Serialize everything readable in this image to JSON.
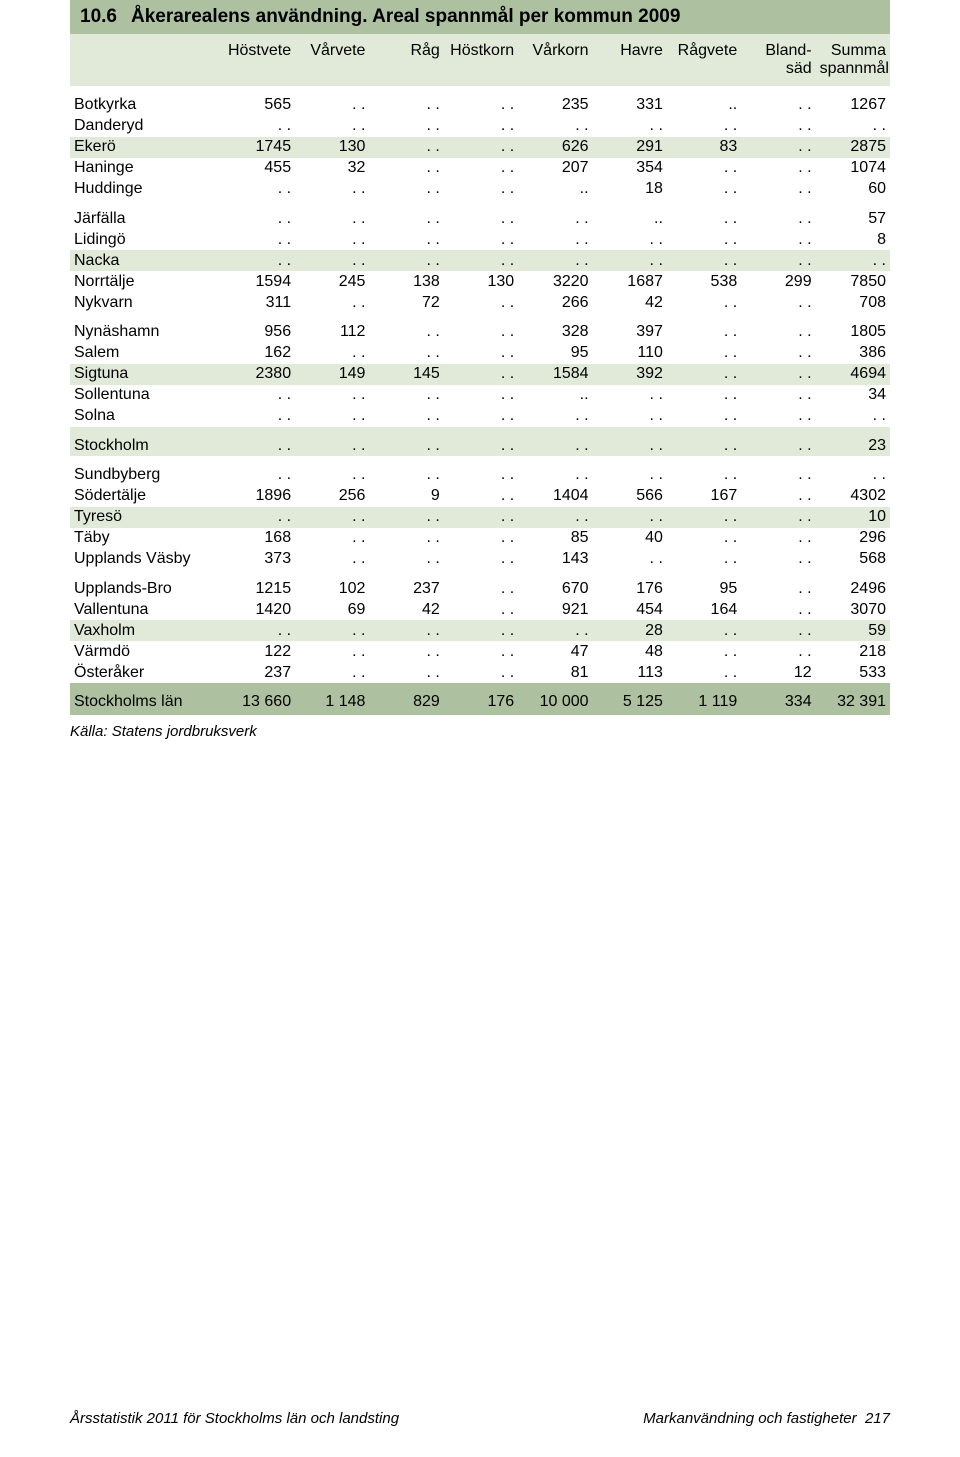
{
  "title_num": "10.6",
  "title_text": "Åkerarealens användning. Areal spannmål per kommun 2009",
  "columns": [
    "Höstvete",
    "Vårvete",
    "Råg",
    "Höstkorn",
    "Vårkorn",
    "Havre",
    "Rågvete",
    "Bland-\nsäd",
    "Summa\nspannmål"
  ],
  "groups": [
    {
      "hl": [
        2
      ],
      "rows": [
        {
          "l": "Botkyrka",
          "v": [
            "565",
            ". .",
            ". .",
            ". .",
            "235",
            "331",
            "..",
            ". .",
            "1267"
          ]
        },
        {
          "l": "Danderyd",
          "v": [
            ". .",
            ". .",
            ". .",
            ". .",
            ". .",
            ". .",
            ". .",
            ". .",
            ". ."
          ]
        },
        {
          "l": "Ekerö",
          "v": [
            "1745",
            "130",
            ". .",
            ". .",
            "626",
            "291",
            "83",
            ". .",
            "2875"
          ]
        },
        {
          "l": "Haninge",
          "v": [
            "455",
            "32",
            ". .",
            ". .",
            "207",
            "354",
            ". .",
            ". .",
            "1074"
          ]
        },
        {
          "l": "Huddinge",
          "v": [
            ". .",
            ". .",
            ". .",
            ". .",
            "..",
            "18",
            ". .",
            ". .",
            "60"
          ]
        }
      ]
    },
    {
      "hl": [
        2
      ],
      "rows": [
        {
          "l": "Järfälla",
          "v": [
            ". .",
            ". .",
            ". .",
            ". .",
            ". .",
            "..",
            ". .",
            ". .",
            "57"
          ]
        },
        {
          "l": "Lidingö",
          "v": [
            ". .",
            ". .",
            ". .",
            ". .",
            ". .",
            ". .",
            ". .",
            ". .",
            "8"
          ]
        },
        {
          "l": "Nacka",
          "v": [
            ". .",
            ". .",
            ". .",
            ". .",
            ". .",
            ". .",
            ". .",
            ". .",
            ". ."
          ]
        },
        {
          "l": "Norrtälje",
          "v": [
            "1594",
            "245",
            "138",
            "130",
            "3220",
            "1687",
            "538",
            "299",
            "7850"
          ]
        },
        {
          "l": "Nykvarn",
          "v": [
            "311",
            ". .",
            "72",
            ". .",
            "266",
            "42",
            ". .",
            ". .",
            "708"
          ]
        }
      ]
    },
    {
      "hl": [
        2
      ],
      "rows": [
        {
          "l": "Nynäshamn",
          "v": [
            "956",
            "112",
            ". .",
            ". .",
            "328",
            "397",
            ". .",
            ". .",
            "1805"
          ]
        },
        {
          "l": "Salem",
          "v": [
            "162",
            ". .",
            ". .",
            ". .",
            "95",
            "110",
            ". .",
            ". .",
            "386"
          ]
        },
        {
          "l": "Sigtuna",
          "v": [
            "2380",
            "149",
            "145",
            ". .",
            "1584",
            "392",
            ". .",
            ". .",
            "4694"
          ]
        },
        {
          "l": "Sollentuna",
          "v": [
            ". .",
            ". .",
            ". .",
            ". .",
            "..",
            ". .",
            ". .",
            ". .",
            "34"
          ]
        },
        {
          "l": "Solna",
          "v": [
            ". .",
            ". .",
            ". .",
            ". .",
            ". .",
            ". .",
            ". .",
            ". .",
            ". ."
          ]
        }
      ]
    },
    {
      "hl": [
        0
      ],
      "rows": [
        {
          "l": "Stockholm",
          "v": [
            ". .",
            ". .",
            ". .",
            ". .",
            ". .",
            ". .",
            ". .",
            ". .",
            "23"
          ]
        }
      ]
    },
    {
      "hl": [
        2
      ],
      "rows": [
        {
          "l": "Sundbyberg",
          "v": [
            ". .",
            ". .",
            ". .",
            ". .",
            ". .",
            ". .",
            ". .",
            ". .",
            ". ."
          ]
        },
        {
          "l": "Södertälje",
          "v": [
            "1896",
            "256",
            "9",
            ". .",
            "1404",
            "566",
            "167",
            ". .",
            "4302"
          ]
        },
        {
          "l": "Tyresö",
          "v": [
            ". .",
            ". .",
            ". .",
            ". .",
            ". .",
            ". .",
            ". .",
            ". .",
            "10"
          ]
        },
        {
          "l": "Täby",
          "v": [
            "168",
            ". .",
            ". .",
            ". .",
            "85",
            "40",
            ". .",
            ". .",
            "296"
          ]
        },
        {
          "l": "Upplands Väsby",
          "v": [
            "373",
            ". .",
            ". .",
            ". .",
            "143",
            ". .",
            ". .",
            ". .",
            "568"
          ]
        }
      ]
    },
    {
      "hl": [
        2
      ],
      "rows": [
        {
          "l": "Upplands-Bro",
          "v": [
            "1215",
            "102",
            "237",
            ". .",
            "670",
            "176",
            "95",
            ". .",
            "2496"
          ]
        },
        {
          "l": "Vallentuna",
          "v": [
            "1420",
            "69",
            "42",
            ". .",
            "921",
            "454",
            "164",
            ". .",
            "3070"
          ]
        },
        {
          "l": "Vaxholm",
          "v": [
            ". .",
            ". .",
            ". .",
            ". .",
            ". .",
            "28",
            ". .",
            ". .",
            "59"
          ]
        },
        {
          "l": "Värmdö",
          "v": [
            "122",
            ". .",
            ". .",
            ". .",
            "47",
            "48",
            ". .",
            ". .",
            "218"
          ]
        },
        {
          "l": "Österåker",
          "v": [
            "237",
            ". .",
            ". .",
            ". .",
            "81",
            "113",
            ". .",
            "12",
            "533"
          ]
        }
      ]
    }
  ],
  "total": {
    "l": "Stockholms län",
    "v": [
      "13 660",
      "1 148",
      "829",
      "176",
      "10 000",
      "5 125",
      "1 119",
      "334",
      "32 391"
    ]
  },
  "source": "Källa: Statens jordbruksverk",
  "footer_left": "Årsstatistik 2011 för Stockholms län och landsting",
  "footer_right_label": "Markanvändning och fastigheter",
  "footer_page": "217"
}
